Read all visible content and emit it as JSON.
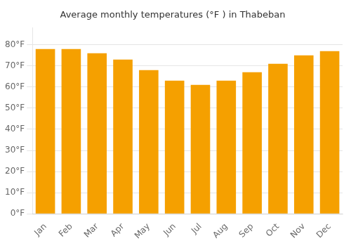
{
  "chart_data": {
    "type": "bar",
    "title": "Average monthly temperatures (°F ) in Thabeban",
    "categories": [
      "Jan",
      "Feb",
      "Mar",
      "Apr",
      "May",
      "Jun",
      "Jul",
      "Aug",
      "Sep",
      "Oct",
      "Nov",
      "Dec"
    ],
    "values": [
      78,
      78,
      76,
      73,
      68,
      63,
      61,
      63,
      67,
      71,
      75,
      77
    ],
    "color": "#F5A000",
    "ylim": [
      0,
      88
    ],
    "yticks": [
      {
        "value": 0,
        "label": "0°F"
      },
      {
        "value": 10,
        "label": "10°F"
      },
      {
        "value": 20,
        "label": "20°F"
      },
      {
        "value": 30,
        "label": "30°F"
      },
      {
        "value": 40,
        "label": "40°F"
      },
      {
        "value": 50,
        "label": "50°F"
      },
      {
        "value": 60,
        "label": "60°F"
      },
      {
        "value": 70,
        "label": "70°F"
      },
      {
        "value": 80,
        "label": "80°F"
      }
    ],
    "grid": true
  }
}
